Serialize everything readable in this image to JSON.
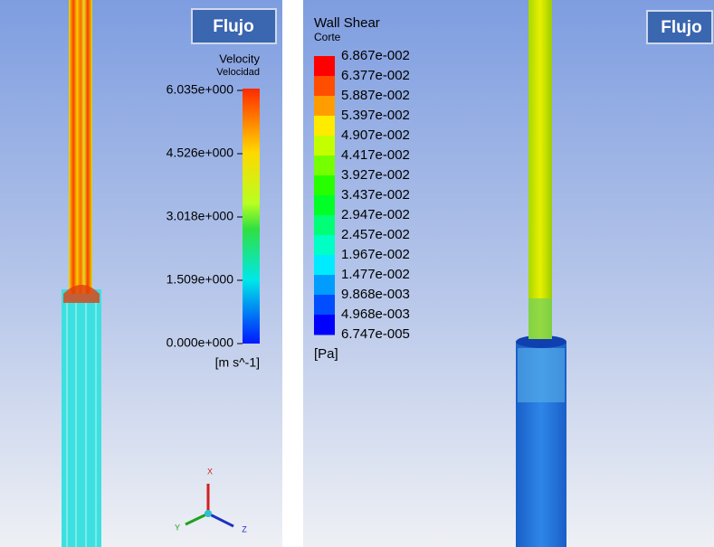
{
  "left_panel": {
    "button": "Flujo",
    "legend": {
      "title": "Velocity",
      "subtitle": "Velocidad",
      "labels": [
        "6.035e+000",
        "4.526e+000",
        "3.018e+000",
        "1.509e+000",
        "0.000e+000"
      ],
      "unit": "[m s^-1]"
    },
    "triad": {
      "x": "X",
      "y": "Y",
      "z": "Z"
    }
  },
  "right_panel": {
    "button": "Flujo",
    "legend": {
      "title": "Wall Shear",
      "subtitle": "Corte",
      "labels": [
        "6.867e-002",
        "6.377e-002",
        "5.887e-002",
        "5.397e-002",
        "4.907e-002",
        "4.417e-002",
        "3.927e-002",
        "3.437e-002",
        "2.947e-002",
        "2.457e-002",
        "1.967e-002",
        "1.477e-002",
        "9.868e-003",
        "4.968e-003",
        "6.747e-005"
      ],
      "unit": "[Pa]"
    }
  }
}
